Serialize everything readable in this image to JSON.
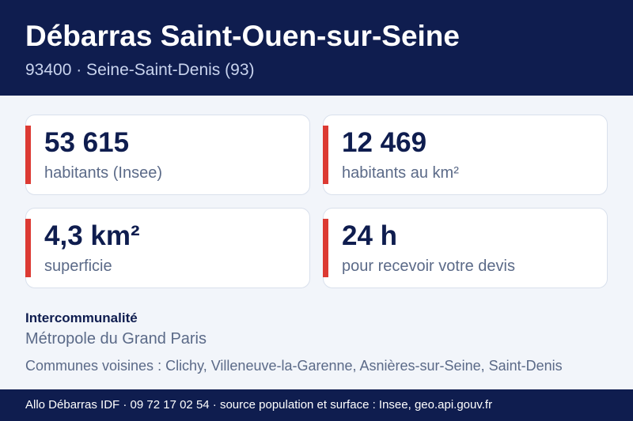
{
  "header": {
    "title": "Débarras Saint-Ouen-sur-Seine",
    "subtitle": "93400 · Seine-Saint-Denis (93)"
  },
  "stats": [
    {
      "value": "53 615",
      "label": "habitants (Insee)"
    },
    {
      "value": "12 469",
      "label": "habitants au km²"
    },
    {
      "value": "4,3 km²",
      "label": "superficie"
    },
    {
      "value": "24 h",
      "label": "pour recevoir votre devis"
    }
  ],
  "intercommunalite": {
    "heading": "Intercommunalité",
    "value": "Métropole du Grand Paris"
  },
  "neighbors": "Communes voisines : Clichy, Villeneuve-la-Garenne, Asnières-sur-Seine, Saint-Denis",
  "footer": {
    "text": "Allo Débarras IDF · 09 72 17 02 54 · source population et surface : Insee, geo.api.gouv.fr"
  },
  "colors": {
    "navy": "#0f1d4f",
    "accent_red": "#dc3a33",
    "background": "#f2f5fa"
  }
}
